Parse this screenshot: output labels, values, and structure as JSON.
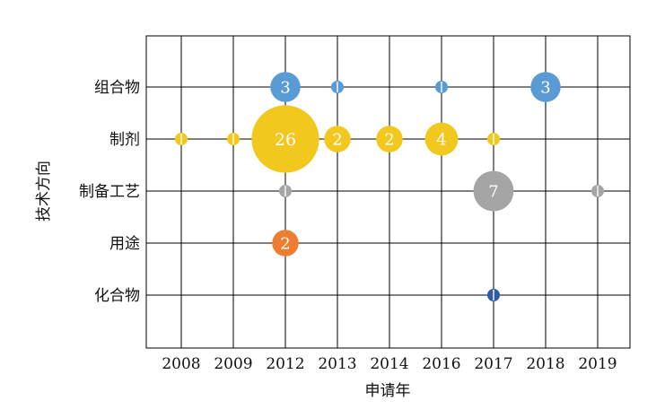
{
  "chart_data": {
    "type": "scatter",
    "subtype": "bubble",
    "title": "",
    "xlabel": "申请年",
    "ylabel": "技术方向",
    "x_categories": [
      "2008",
      "2009",
      "2012",
      "2013",
      "2014",
      "2016",
      "2017",
      "2018",
      "2019"
    ],
    "y_categories": [
      "组合物",
      "制剂",
      "制备工艺",
      "用途",
      "化合物"
    ],
    "grid": true,
    "legend": "none",
    "colors": {
      "组合物": "#5b9bd5",
      "制剂": "#f2c81f",
      "制备工艺": "#a5a5a5",
      "用途": "#ed7d31",
      "化合物": "#2e5aa8"
    },
    "points": [
      {
        "x": "2012",
        "y": "组合物",
        "value": 3,
        "label": "3"
      },
      {
        "x": "2013",
        "y": "组合物",
        "value": 1,
        "label": ""
      },
      {
        "x": "2016",
        "y": "组合物",
        "value": 1,
        "label": ""
      },
      {
        "x": "2018",
        "y": "组合物",
        "value": 3,
        "label": "3"
      },
      {
        "x": "2008",
        "y": "制剂",
        "value": 1,
        "label": ""
      },
      {
        "x": "2009",
        "y": "制剂",
        "value": 1,
        "label": ""
      },
      {
        "x": "2012",
        "y": "制剂",
        "value": 26,
        "label": "26"
      },
      {
        "x": "2013",
        "y": "制剂",
        "value": 2,
        "label": "2"
      },
      {
        "x": "2014",
        "y": "制剂",
        "value": 2,
        "label": "2"
      },
      {
        "x": "2016",
        "y": "制剂",
        "value": 4,
        "label": "4"
      },
      {
        "x": "2017",
        "y": "制剂",
        "value": 1,
        "label": ""
      },
      {
        "x": "2012",
        "y": "制备工艺",
        "value": 1,
        "label": ""
      },
      {
        "x": "2017",
        "y": "制备工艺",
        "value": 7,
        "label": "7"
      },
      {
        "x": "2019",
        "y": "制备工艺",
        "value": 1,
        "label": ""
      },
      {
        "x": "2012",
        "y": "用途",
        "value": 2,
        "label": "2"
      },
      {
        "x": "2017",
        "y": "化合物",
        "value": 1,
        "label": ""
      }
    ]
  }
}
